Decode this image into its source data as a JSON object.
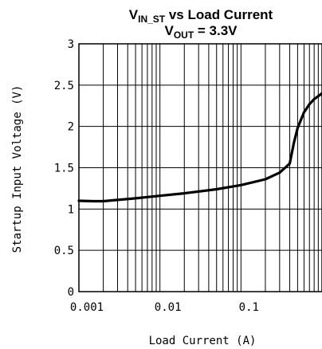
{
  "chart_data": {
    "type": "line",
    "title_line1": {
      "main": "V",
      "sub": "IN_ST",
      "rest": " vs Load Current"
    },
    "title_line2": {
      "main": "V",
      "sub": "OUT",
      "rest": " = 3.3V"
    },
    "xlabel": "Load Current (A)",
    "ylabel": "Startup Input Voltage (V)",
    "x_scale": "log",
    "xlim": [
      0.001,
      1
    ],
    "ylim": [
      0,
      3
    ],
    "x_tick_labels": [
      "0.001",
      "0.01",
      "0.1"
    ],
    "x_tick_values": [
      0.001,
      0.01,
      0.1
    ],
    "y_tick_labels": [
      "0",
      "0.5",
      "1",
      "1.5",
      "2",
      "2.5",
      "3"
    ],
    "y_tick_values": [
      0,
      0.5,
      1,
      1.5,
      2,
      2.5,
      3
    ],
    "grid": true,
    "series": [
      {
        "color": "#000000",
        "x": [
          0.001,
          0.0015,
          0.002,
          0.003,
          0.005,
          0.01,
          0.02,
          0.05,
          0.1,
          0.2,
          0.3,
          0.4,
          0.45,
          0.5,
          0.55,
          0.6,
          0.7,
          0.8,
          1.0
        ],
        "y": [
          1.1,
          1.095,
          1.095,
          1.11,
          1.13,
          1.16,
          1.19,
          1.24,
          1.29,
          1.36,
          1.44,
          1.55,
          1.8,
          1.98,
          2.08,
          2.17,
          2.27,
          2.33,
          2.4
        ]
      }
    ]
  }
}
